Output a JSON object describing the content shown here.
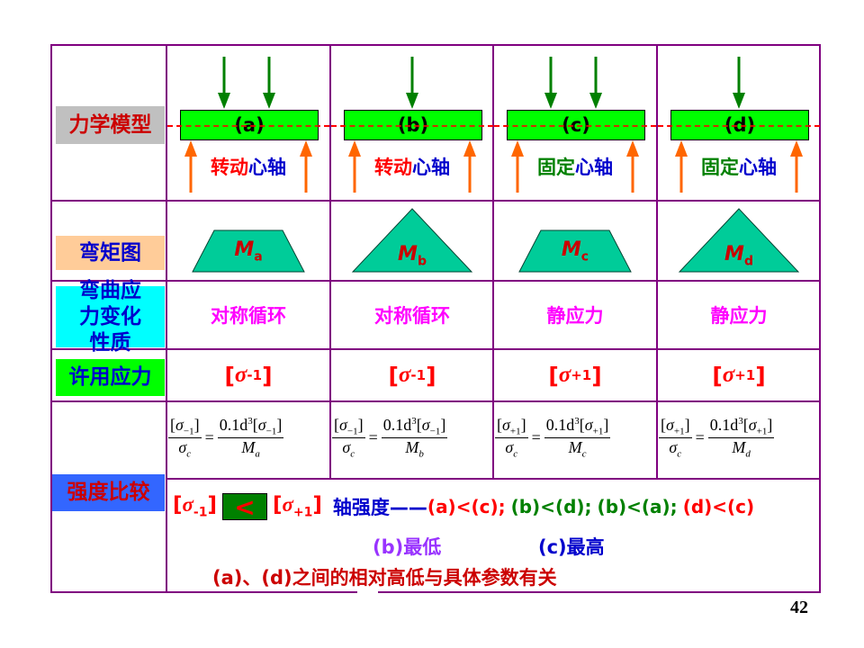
{
  "row_labels": {
    "model": "力学模型",
    "moment": "弯矩图",
    "stress": "弯曲应力变化性质",
    "allow": "许用应力",
    "compare": "强度比较"
  },
  "columns": [
    {
      "tag": "(a)",
      "kind_a": "转动",
      "kind_b": "心轴",
      "moment": "M",
      "moment_sub": "a",
      "stress": "对称循环",
      "allow_sub": "-1",
      "f_left_sub": "−1",
      "f_m_sub": "a"
    },
    {
      "tag": "(b)",
      "kind_a": "转动",
      "kind_b": "心轴",
      "moment": "M",
      "moment_sub": "b",
      "stress": "对称循环",
      "allow_sub": "-1",
      "f_left_sub": "−1",
      "f_m_sub": "b"
    },
    {
      "tag": "(c)",
      "kind_a": "固定",
      "kind_b": "心轴",
      "moment": "M",
      "moment_sub": "c",
      "stress": "静应力",
      "allow_sub": "+1",
      "f_left_sub": "+1",
      "f_m_sub": "c"
    },
    {
      "tag": "(d)",
      "kind_a": "固定",
      "kind_b": "心轴",
      "moment": "M",
      "moment_sub": "d",
      "stress": "静应力",
      "allow_sub": "+1",
      "f_left_sub": "+1",
      "f_m_sub": "d"
    }
  ],
  "formula": {
    "sigma": "σ",
    "c": "c",
    "coef": "0.1d",
    "exp": "3",
    "eq": "="
  },
  "compare": {
    "left_sub": "-1",
    "lt": "<",
    "right_sub": "+1",
    "strength": "轴强度——",
    "r1": "(a)<(c);",
    "r2": "(b)<(d);",
    "r3": "(b)<(a);",
    "r4": "(d)<(c)",
    "lowest": "(b)最低",
    "highest": "(c)最高",
    "note": "(a)、(d)之间的相对高低与具体参数有关"
  },
  "page_number": "42",
  "colors": {
    "border": "#800080",
    "beam": "#00FF00",
    "moment_fill": "#00CC99",
    "force_down": "#008000",
    "force_up": "#FF6600"
  }
}
